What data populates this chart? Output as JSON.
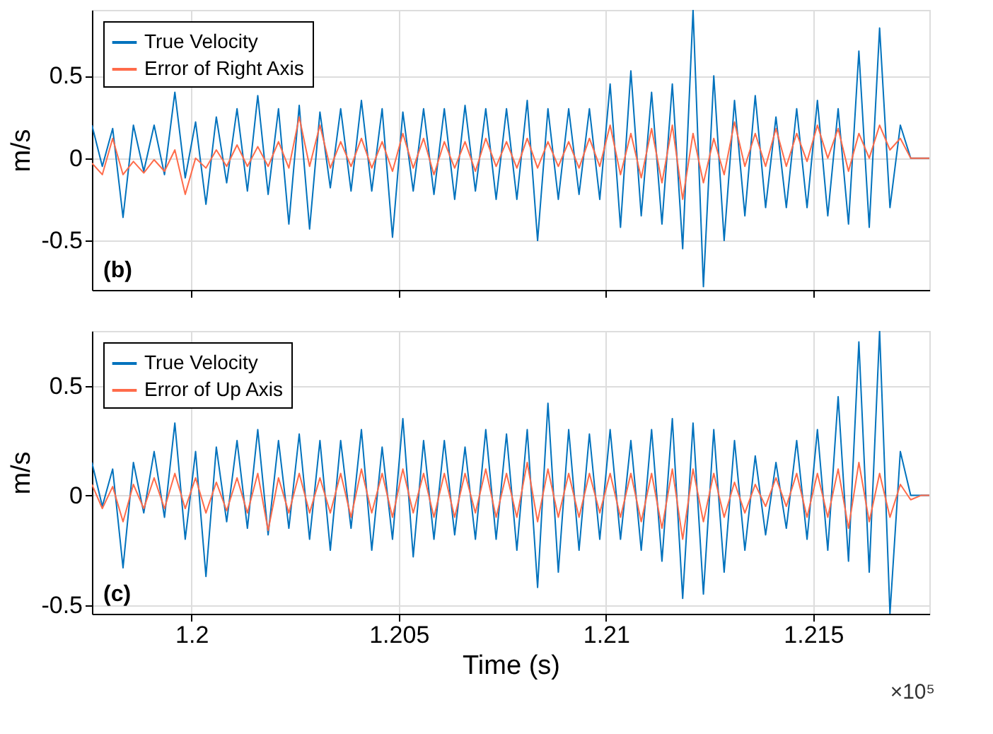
{
  "chart_data": [
    {
      "type": "line",
      "ylabel": "m/s",
      "annotations": [
        "(b)"
      ],
      "x": [
        1.1976,
        1.19785,
        1.1981,
        1.19835,
        1.1986,
        1.19885,
        1.1991,
        1.19935,
        1.1996,
        1.19985,
        1.2001,
        1.20035,
        1.2006,
        1.20085,
        1.2011,
        1.20135,
        1.2016,
        1.20185,
        1.2021,
        1.20235,
        1.2026,
        1.20285,
        1.2031,
        1.20335,
        1.2036,
        1.20385,
        1.2041,
        1.20435,
        1.2046,
        1.20485,
        1.2051,
        1.20535,
        1.2056,
        1.20585,
        1.2061,
        1.20635,
        1.2066,
        1.20685,
        1.2071,
        1.20735,
        1.2076,
        1.20785,
        1.2081,
        1.20835,
        1.2086,
        1.20885,
        1.2091,
        1.20935,
        1.2096,
        1.20985,
        1.2101,
        1.21035,
        1.2106,
        1.21085,
        1.2111,
        1.21135,
        1.2116,
        1.21185,
        1.2121,
        1.21235,
        1.2126,
        1.21285,
        1.2131,
        1.21335,
        1.2136,
        1.21385,
        1.2141,
        1.21435,
        1.2146,
        1.21485,
        1.2151,
        1.21535,
        1.2156,
        1.21585,
        1.2161,
        1.21635,
        1.2166,
        1.21685,
        1.2171,
        1.21735,
        1.2176,
        1.2178
      ],
      "series": [
        {
          "name": "True Velocity",
          "color": "#0072bd",
          "values": [
            0.2,
            -0.05,
            0.18,
            -0.36,
            0.2,
            -0.08,
            0.2,
            -0.1,
            0.4,
            -0.12,
            0.22,
            -0.28,
            0.25,
            -0.15,
            0.3,
            -0.2,
            0.38,
            -0.22,
            0.3,
            -0.4,
            0.32,
            -0.43,
            0.28,
            -0.18,
            0.3,
            -0.2,
            0.35,
            -0.2,
            0.3,
            -0.48,
            0.28,
            -0.2,
            0.3,
            -0.22,
            0.3,
            -0.25,
            0.32,
            -0.2,
            0.3,
            -0.25,
            0.3,
            -0.25,
            0.35,
            -0.5,
            0.3,
            -0.25,
            0.3,
            -0.22,
            0.3,
            -0.25,
            0.45,
            -0.42,
            0.53,
            -0.35,
            0.4,
            -0.4,
            0.45,
            -0.55,
            0.9,
            -0.78,
            0.5,
            -0.5,
            0.35,
            -0.35,
            0.38,
            -0.3,
            0.25,
            -0.3,
            0.3,
            -0.3,
            0.35,
            -0.35,
            0.3,
            -0.4,
            0.65,
            -0.42,
            0.79,
            -0.3,
            0.2,
            0.0,
            0.0,
            0.0
          ]
        },
        {
          "name": "Error of Right Axis",
          "color": "#ff6b4a",
          "values": [
            -0.03,
            -0.1,
            0.12,
            -0.1,
            -0.02,
            -0.09,
            -0.01,
            -0.08,
            0.05,
            -0.22,
            0.0,
            -0.06,
            0.05,
            -0.05,
            0.08,
            -0.05,
            0.07,
            -0.05,
            0.1,
            -0.06,
            0.25,
            -0.05,
            0.2,
            -0.06,
            0.1,
            -0.05,
            0.12,
            -0.06,
            0.1,
            -0.08,
            0.15,
            -0.06,
            0.12,
            -0.1,
            0.1,
            -0.06,
            0.1,
            -0.08,
            0.12,
            -0.05,
            0.1,
            -0.06,
            0.12,
            -0.06,
            0.1,
            -0.05,
            0.1,
            -0.06,
            0.12,
            -0.05,
            0.2,
            -0.1,
            0.15,
            -0.12,
            0.18,
            -0.15,
            0.2,
            -0.25,
            0.15,
            -0.15,
            0.12,
            -0.1,
            0.22,
            -0.05,
            0.15,
            -0.05,
            0.18,
            -0.05,
            0.15,
            -0.02,
            0.2,
            0.0,
            0.18,
            -0.08,
            0.15,
            0.0,
            0.2,
            0.05,
            0.12,
            0.0,
            0.0,
            0.0
          ]
        }
      ],
      "xlim": [
        1.1976,
        1.2178
      ],
      "xticks": [
        1.2,
        1.205,
        1.21,
        1.215
      ],
      "ylim": [
        -0.8,
        0.9
      ],
      "yticks": [
        -0.5,
        0,
        0.5
      ],
      "grid": true,
      "legend": "top left",
      "tick_labels": "y",
      "line_style": "solid"
    },
    {
      "type": "line",
      "ylabel": "m/s",
      "xlabel": "Time (s)",
      "annotations": [
        "(c)",
        "×10⁵"
      ],
      "x": [
        1.1976,
        1.19785,
        1.1981,
        1.19835,
        1.1986,
        1.19885,
        1.1991,
        1.19935,
        1.1996,
        1.19985,
        1.2001,
        1.20035,
        1.2006,
        1.20085,
        1.2011,
        1.20135,
        1.2016,
        1.20185,
        1.2021,
        1.20235,
        1.2026,
        1.20285,
        1.2031,
        1.20335,
        1.2036,
        1.20385,
        1.2041,
        1.20435,
        1.2046,
        1.20485,
        1.2051,
        1.20535,
        1.2056,
        1.20585,
        1.2061,
        1.20635,
        1.2066,
        1.20685,
        1.2071,
        1.20735,
        1.2076,
        1.20785,
        1.2081,
        1.20835,
        1.2086,
        1.20885,
        1.2091,
        1.20935,
        1.2096,
        1.20985,
        1.2101,
        1.21035,
        1.2106,
        1.21085,
        1.2111,
        1.21135,
        1.2116,
        1.21185,
        1.2121,
        1.21235,
        1.2126,
        1.21285,
        1.2131,
        1.21335,
        1.2136,
        1.21385,
        1.2141,
        1.21435,
        1.2146,
        1.21485,
        1.2151,
        1.21535,
        1.2156,
        1.21585,
        1.2161,
        1.21635,
        1.2166,
        1.21685,
        1.2171,
        1.21735,
        1.2176,
        1.2178
      ],
      "series": [
        {
          "name": "True Velocity",
          "color": "#0072bd",
          "values": [
            0.15,
            -0.05,
            0.12,
            -0.33,
            0.15,
            -0.08,
            0.2,
            -0.1,
            0.33,
            -0.2,
            0.2,
            -0.37,
            0.22,
            -0.12,
            0.25,
            -0.15,
            0.3,
            -0.18,
            0.25,
            -0.15,
            0.28,
            -0.2,
            0.25,
            -0.25,
            0.25,
            -0.15,
            0.3,
            -0.25,
            0.22,
            -0.2,
            0.35,
            -0.28,
            0.25,
            -0.2,
            0.25,
            -0.18,
            0.22,
            -0.2,
            0.3,
            -0.2,
            0.28,
            -0.25,
            0.3,
            -0.42,
            0.42,
            -0.35,
            0.3,
            -0.25,
            0.28,
            -0.2,
            0.3,
            -0.2,
            0.25,
            -0.25,
            0.3,
            -0.3,
            0.35,
            -0.47,
            0.33,
            -0.45,
            0.3,
            -0.35,
            0.25,
            -0.25,
            0.18,
            -0.18,
            0.15,
            -0.15,
            0.25,
            -0.2,
            0.3,
            -0.25,
            0.45,
            -0.3,
            0.7,
            -0.35,
            0.75,
            -0.54,
            0.2,
            0.0,
            0.0,
            0.0
          ]
        },
        {
          "name": "Error of Up Axis",
          "color": "#ff6b4a",
          "values": [
            0.05,
            -0.06,
            0.04,
            -0.12,
            0.05,
            -0.06,
            0.08,
            -0.06,
            0.1,
            -0.06,
            0.08,
            -0.08,
            0.06,
            -0.07,
            0.08,
            -0.08,
            0.1,
            -0.16,
            0.08,
            -0.08,
            0.1,
            -0.08,
            0.08,
            -0.08,
            0.1,
            -0.1,
            0.12,
            -0.08,
            0.1,
            -0.1,
            0.12,
            -0.08,
            0.1,
            -0.1,
            0.1,
            -0.1,
            0.1,
            -0.08,
            0.12,
            -0.1,
            0.1,
            -0.1,
            0.15,
            -0.12,
            0.12,
            -0.1,
            0.1,
            -0.1,
            0.1,
            -0.08,
            0.1,
            -0.1,
            0.1,
            -0.12,
            0.1,
            -0.15,
            0.12,
            -0.2,
            0.12,
            -0.12,
            0.1,
            -0.1,
            0.06,
            -0.08,
            0.05,
            -0.05,
            0.08,
            -0.05,
            0.1,
            -0.1,
            0.1,
            -0.1,
            0.12,
            -0.15,
            0.15,
            -0.12,
            0.1,
            -0.1,
            0.05,
            -0.02,
            0.0,
            0.0
          ]
        }
      ],
      "xlim": [
        1.1976,
        1.2178
      ],
      "xticks": [
        1.2,
        1.205,
        1.21,
        1.215
      ],
      "ylim": [
        -0.54,
        0.75
      ],
      "yticks": [
        -0.5,
        0,
        0.5
      ],
      "grid": true,
      "legend": "top left",
      "line_style": "solid"
    }
  ]
}
